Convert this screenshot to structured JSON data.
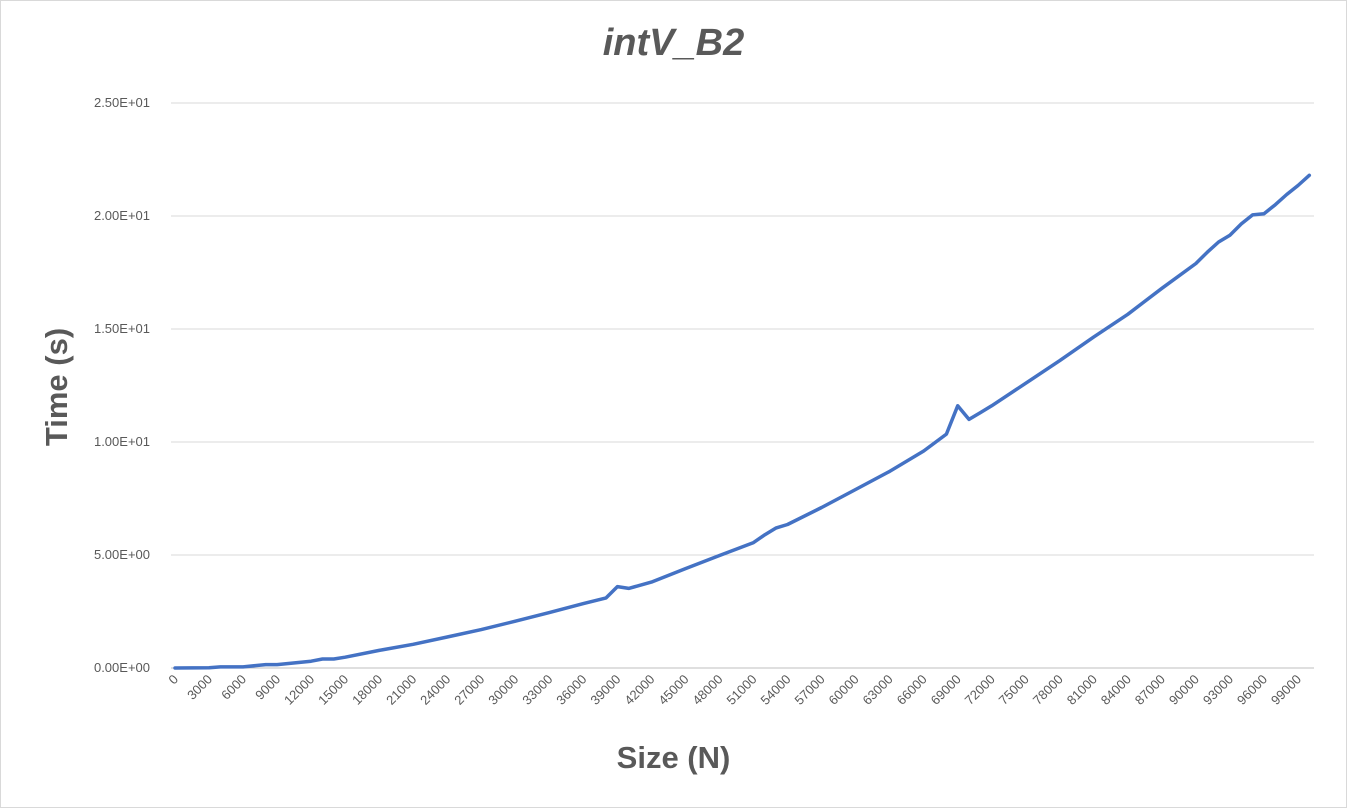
{
  "chart_data": {
    "type": "line",
    "title": "intV_B2",
    "xlabel": "Size (N)",
    "ylabel": "Time (s)",
    "ylim": [
      0,
      25
    ],
    "xlim": [
      0,
      100000
    ],
    "grid": true,
    "legend": "none",
    "y_ticks": [
      {
        "value": 0,
        "label": "0.00E+00"
      },
      {
        "value": 5,
        "label": "5.00E+00"
      },
      {
        "value": 10,
        "label": "1.00E+01"
      },
      {
        "value": 15,
        "label": "1.50E+01"
      },
      {
        "value": 20,
        "label": "2.00E+01"
      },
      {
        "value": 25,
        "label": "2.50E+01"
      }
    ],
    "x_tick_labels": [
      "0",
      "3000",
      "6000",
      "9000",
      "12000",
      "15000",
      "18000",
      "21000",
      "24000",
      "27000",
      "30000",
      "33000",
      "36000",
      "39000",
      "42000",
      "45000",
      "48000",
      "51000",
      "54000",
      "57000",
      "60000",
      "63000",
      "66000",
      "69000",
      "72000",
      "75000",
      "78000",
      "81000",
      "84000",
      "87000",
      "90000",
      "93000",
      "96000",
      "99000"
    ],
    "series": [
      {
        "color": "#4472c4",
        "x": [
          0,
          3000,
          4000,
          6000,
          8000,
          9000,
          12000,
          13000,
          14000,
          15000,
          18000,
          21000,
          24000,
          27000,
          30000,
          33000,
          36000,
          38000,
          39000,
          40000,
          42000,
          45000,
          48000,
          51000,
          52000,
          53000,
          54000,
          57000,
          60000,
          63000,
          66000,
          68000,
          69000,
          70000,
          71000,
          72000,
          75000,
          78000,
          81000,
          84000,
          87000,
          90000,
          91000,
          92000,
          93000,
          94000,
          95000,
          96000,
          97000,
          98000,
          99000,
          100000
        ],
        "y": [
          0.0,
          0.01,
          0.05,
          0.05,
          0.15,
          0.15,
          0.3,
          0.4,
          0.4,
          0.48,
          0.78,
          1.05,
          1.37,
          1.7,
          2.07,
          2.45,
          2.85,
          3.1,
          3.6,
          3.52,
          3.8,
          4.4,
          4.98,
          5.55,
          5.9,
          6.2,
          6.35,
          7.1,
          7.9,
          8.7,
          9.6,
          10.35,
          11.6,
          11.0,
          11.3,
          11.6,
          12.6,
          13.6,
          14.65,
          15.65,
          16.8,
          17.9,
          18.4,
          18.85,
          19.15,
          19.65,
          20.05,
          20.1,
          20.5,
          20.95,
          21.35,
          21.8
        ]
      }
    ]
  }
}
